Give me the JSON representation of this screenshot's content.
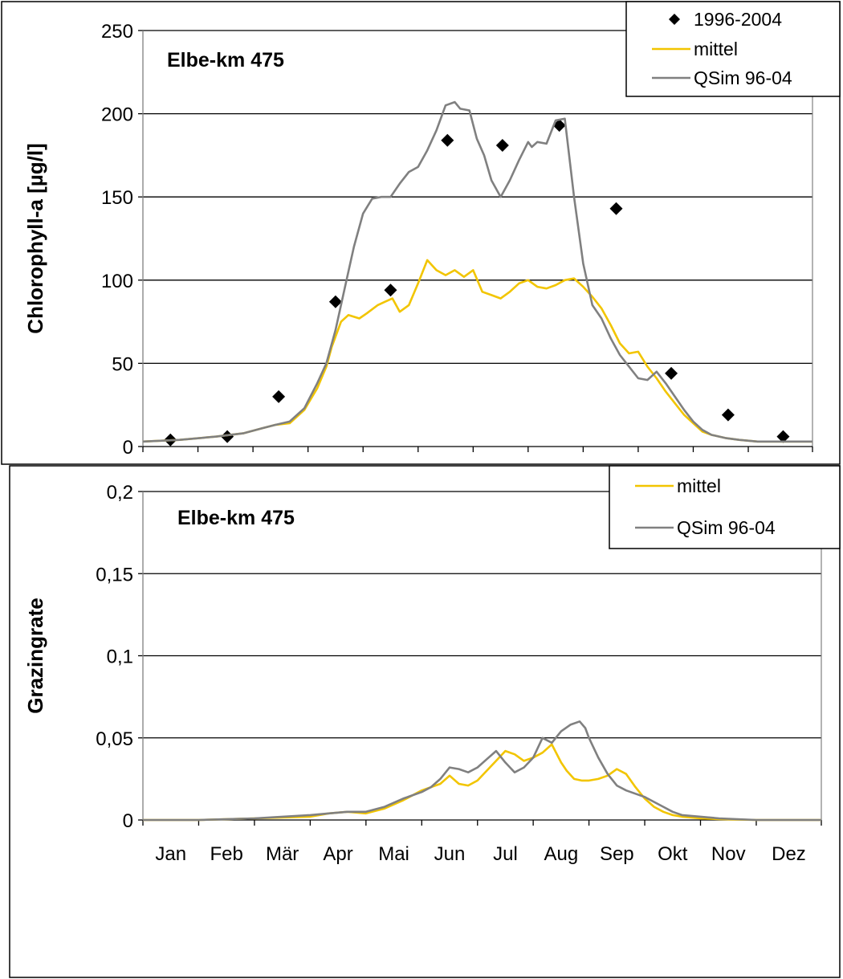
{
  "chart_data": [
    {
      "type": "line",
      "annotation": "Elbe-km 475",
      "ylabel": "Chlorophyll-a [µg/l]",
      "ylim": [
        0,
        250
      ],
      "yticks": [
        0,
        50,
        100,
        150,
        200,
        250
      ],
      "ytick_labels": [
        "0",
        "50",
        "100",
        "150",
        "200",
        "250"
      ],
      "xlim": [
        0,
        365
      ],
      "grid": "horizontal",
      "legend_position": "top-right",
      "legend": [
        "1996-2004",
        "mittel",
        "QSim 96-04"
      ],
      "colors": {
        "scatter": "#000000",
        "mittel": "#f2c500",
        "qsim": "#808080"
      },
      "series": [
        {
          "name": "1996-2004",
          "kind": "scatter",
          "marker": "diamond",
          "x": [
            15,
            46,
            74,
            105,
            135,
            166,
            196,
            227,
            258,
            288,
            319,
            349
          ],
          "y": [
            4,
            6,
            30,
            87,
            94,
            184,
            181,
            193,
            143,
            44,
            19,
            6
          ]
        },
        {
          "name": "mittel",
          "kind": "line",
          "x": [
            0,
            20,
            40,
            55,
            65,
            72,
            80,
            88,
            95,
            100,
            103,
            108,
            112,
            118,
            122,
            128,
            132,
            136,
            140,
            145,
            150,
            155,
            160,
            165,
            170,
            175,
            180,
            185,
            190,
            195,
            200,
            205,
            210,
            215,
            220,
            225,
            230,
            235,
            240,
            245,
            250,
            255,
            260,
            265,
            270,
            275,
            280,
            285,
            290,
            295,
            300,
            305,
            310,
            318,
            325,
            335,
            345,
            355,
            365
          ],
          "y": [
            3,
            4,
            6,
            8,
            11,
            13,
            14,
            22,
            35,
            48,
            60,
            75,
            79,
            77,
            80,
            85,
            87,
            89,
            81,
            85,
            98,
            112,
            106,
            103,
            106,
            102,
            106,
            93,
            91,
            89,
            93,
            98,
            100,
            96,
            95,
            97,
            100,
            101,
            96,
            90,
            83,
            73,
            62,
            56,
            57,
            48,
            41,
            33,
            26,
            19,
            14,
            9,
            7,
            5,
            4,
            3,
            3,
            3,
            3
          ]
        },
        {
          "name": "QSim 96-04",
          "kind": "line",
          "x": [
            0,
            20,
            40,
            55,
            65,
            72,
            80,
            88,
            95,
            100,
            105,
            110,
            115,
            120,
            125,
            130,
            135,
            140,
            145,
            150,
            155,
            160,
            165,
            170,
            173,
            178,
            182,
            186,
            190,
            195,
            200,
            205,
            210,
            212,
            215,
            220,
            225,
            230,
            235,
            240,
            245,
            250,
            255,
            260,
            265,
            270,
            275,
            280,
            285,
            290,
            295,
            300,
            305,
            310,
            318,
            325,
            335,
            345,
            355,
            365
          ],
          "y": [
            3,
            4,
            6,
            8,
            11,
            13,
            15,
            23,
            38,
            50,
            70,
            95,
            120,
            140,
            149,
            150,
            150,
            158,
            165,
            168,
            178,
            190,
            205,
            207,
            203,
            202,
            185,
            175,
            160,
            150,
            160,
            172,
            183,
            180,
            183,
            182,
            196,
            197,
            150,
            110,
            85,
            77,
            65,
            55,
            48,
            41,
            40,
            45,
            38,
            30,
            22,
            15,
            10,
            7,
            5,
            4,
            3,
            3,
            3,
            3
          ]
        }
      ]
    },
    {
      "type": "line",
      "annotation": "Elbe-km 475",
      "ylabel": "Grazingrate",
      "ylim": [
        0,
        0.2
      ],
      "yticks": [
        0,
        0.05,
        0.1,
        0.15,
        0.2
      ],
      "ytick_labels": [
        "0",
        "0,05",
        "0,1",
        "0,15",
        "0,2"
      ],
      "xlim": [
        0,
        365
      ],
      "grid": "horizontal",
      "legend_position": "top-right",
      "legend": [
        "mittel",
        "QSim 96-04"
      ],
      "xtick_labels": [
        "Jan",
        "Feb",
        "Mär",
        "Apr",
        "Mai",
        "Jun",
        "Jul",
        "Aug",
        "Sep",
        "Okt",
        "Nov",
        "Dez"
      ],
      "colors": {
        "mittel": "#f2c500",
        "qsim": "#808080"
      },
      "series": [
        {
          "name": "mittel",
          "kind": "line",
          "x": [
            0,
            30,
            60,
            90,
            100,
            110,
            120,
            130,
            140,
            150,
            155,
            160,
            165,
            170,
            175,
            180,
            185,
            190,
            195,
            200,
            205,
            210,
            215,
            220,
            225,
            228,
            232,
            236,
            240,
            245,
            250,
            255,
            260,
            265,
            270,
            275,
            280,
            285,
            290,
            300,
            310,
            330,
            365
          ],
          "y": [
            0,
            0,
            0.001,
            0.002,
            0.004,
            0.005,
            0.004,
            0.007,
            0.012,
            0.018,
            0.02,
            0.022,
            0.027,
            0.022,
            0.021,
            0.024,
            0.03,
            0.036,
            0.042,
            0.04,
            0.036,
            0.038,
            0.041,
            0.046,
            0.035,
            0.03,
            0.025,
            0.024,
            0.024,
            0.025,
            0.027,
            0.031,
            0.028,
            0.02,
            0.013,
            0.008,
            0.005,
            0.003,
            0.002,
            0.001,
            0.0005,
            0,
            0
          ]
        },
        {
          "name": "QSim 96-04",
          "kind": "line",
          "x": [
            0,
            30,
            60,
            90,
            100,
            110,
            120,
            130,
            140,
            150,
            155,
            160,
            165,
            170,
            175,
            180,
            185,
            190,
            195,
            200,
            205,
            210,
            215,
            220,
            225,
            230,
            235,
            238,
            240,
            245,
            250,
            255,
            260,
            265,
            270,
            275,
            280,
            285,
            290,
            300,
            310,
            330,
            365
          ],
          "y": [
            0,
            0,
            0.001,
            0.003,
            0.004,
            0.005,
            0.005,
            0.008,
            0.013,
            0.017,
            0.02,
            0.025,
            0.032,
            0.031,
            0.029,
            0.032,
            0.037,
            0.042,
            0.035,
            0.029,
            0.032,
            0.038,
            0.05,
            0.047,
            0.054,
            0.058,
            0.06,
            0.056,
            0.05,
            0.038,
            0.028,
            0.021,
            0.018,
            0.016,
            0.014,
            0.011,
            0.008,
            0.005,
            0.003,
            0.002,
            0.001,
            0,
            0
          ]
        }
      ]
    }
  ]
}
